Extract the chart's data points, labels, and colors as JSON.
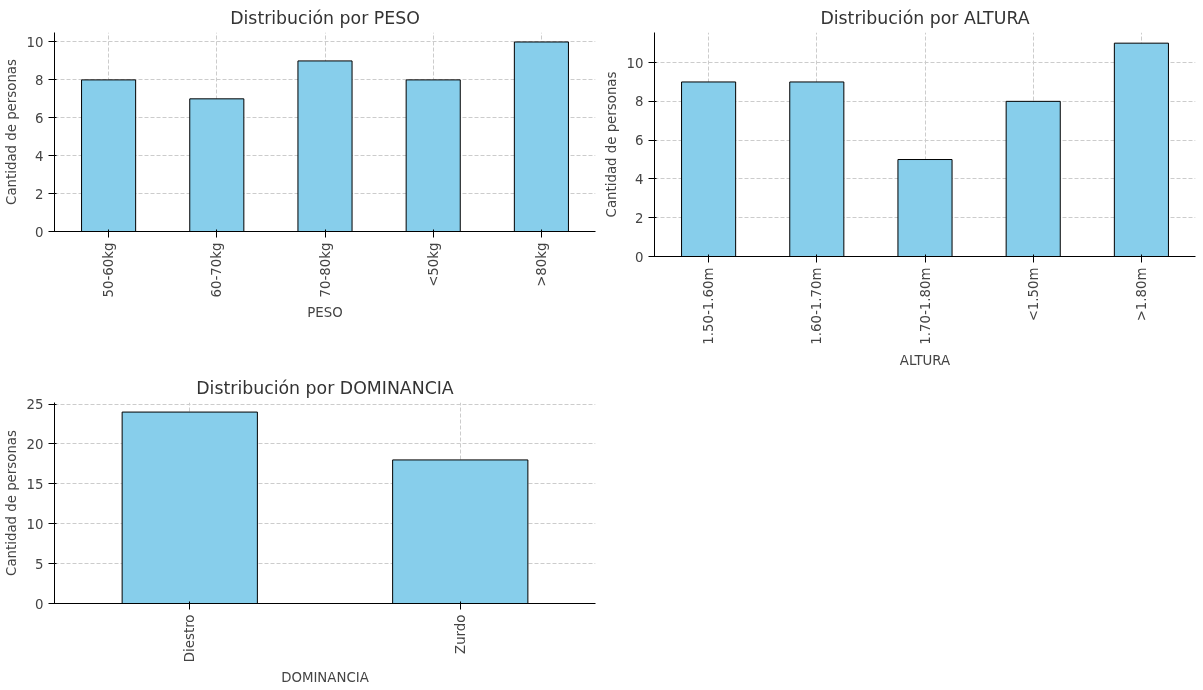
{
  "chart_data": [
    {
      "type": "bar",
      "title": "Distribución por PESO",
      "xlabel": "PESO",
      "ylabel": "Cantidad de personas",
      "categories": [
        "50-60kg",
        "60-70kg",
        "70-80kg",
        "<50kg",
        ">80kg"
      ],
      "values": [
        8,
        7,
        9,
        8,
        10
      ],
      "color": "#87ceeb",
      "ylim": [
        0,
        10.5
      ],
      "yticks": [
        0,
        2,
        4,
        6,
        8,
        10
      ],
      "grid": true
    },
    {
      "type": "bar",
      "title": "Distribución por ALTURA",
      "xlabel": "ALTURA",
      "ylabel": "Cantidad de personas",
      "categories": [
        "1.50-1.60m",
        "1.60-1.70m",
        "1.70-1.80m",
        "<1.50m",
        ">1.80m"
      ],
      "values": [
        9,
        9,
        5,
        8,
        11
      ],
      "color": "#87ceeb",
      "ylim": [
        0,
        11.55
      ],
      "yticks": [
        0,
        2,
        4,
        6,
        8,
        10
      ],
      "grid": true
    },
    {
      "type": "bar",
      "title": "Distribución por DOMINANCIA",
      "xlabel": "DOMINANCIA",
      "ylabel": "Cantidad de personas",
      "categories": [
        "Diestro",
        "Zurdo"
      ],
      "values": [
        24,
        18
      ],
      "color": "#87ceeb",
      "ylim": [
        0,
        25.2
      ],
      "yticks": [
        0,
        5,
        10,
        15,
        20,
        25
      ],
      "grid": true
    }
  ]
}
